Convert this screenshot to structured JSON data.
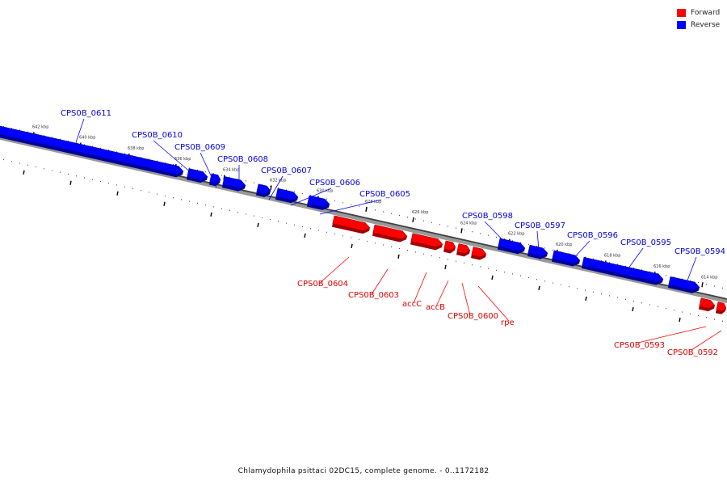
{
  "legend": {
    "forward_label": "Forward",
    "reverse_label": "Reverse",
    "forward_color": "#ff0000",
    "reverse_color": "#0000ff"
  },
  "caption": "Chlamydophila psittaci 02DC15, complete genome. - 0..1172182",
  "ruler": {
    "ticks": [
      {
        "kbp": 642,
        "label": "642 kbp"
      },
      {
        "kbp": 640,
        "label": "640 kbp"
      },
      {
        "kbp": 638,
        "label": "638 kbp"
      },
      {
        "kbp": 636,
        "label": "636 kbp"
      },
      {
        "kbp": 634,
        "label": "634 kbp"
      },
      {
        "kbp": 632,
        "label": "632 kbp"
      },
      {
        "kbp": 630,
        "label": "630 kbp"
      },
      {
        "kbp": 628,
        "label": "628 kbp"
      },
      {
        "kbp": 626,
        "label": "626 kbp"
      },
      {
        "kbp": 624,
        "label": "624 kbp"
      },
      {
        "kbp": 622,
        "label": "622 kbp"
      },
      {
        "kbp": 620,
        "label": "620 kbp"
      },
      {
        "kbp": 618,
        "label": "618 kbp"
      },
      {
        "kbp": 616,
        "label": "616 kbp"
      },
      {
        "kbp": 614,
        "label": "614 kbp"
      }
    ]
  },
  "genes": [
    {
      "name": "CPS0B_0611",
      "strand": "reverse"
    },
    {
      "name": "CPS0B_0610",
      "strand": "reverse"
    },
    {
      "name": "CPS0B_0609",
      "strand": "reverse"
    },
    {
      "name": "CPS0B_0608",
      "strand": "reverse"
    },
    {
      "name": "CPS0B_0607",
      "strand": "reverse"
    },
    {
      "name": "CPS0B_0606",
      "strand": "reverse"
    },
    {
      "name": "CPS0B_0605",
      "strand": "reverse"
    },
    {
      "name": "CPS0B_0598",
      "strand": "reverse"
    },
    {
      "name": "CPS0B_0597",
      "strand": "reverse"
    },
    {
      "name": "CPS0B_0596",
      "strand": "reverse"
    },
    {
      "name": "CPS0B_0595",
      "strand": "reverse"
    },
    {
      "name": "CPS0B_0594",
      "strand": "reverse"
    },
    {
      "name": "CPS0B_0604",
      "strand": "forward"
    },
    {
      "name": "CPS0B_0603",
      "strand": "forward"
    },
    {
      "name": "accC",
      "strand": "forward"
    },
    {
      "name": "accB",
      "strand": "forward"
    },
    {
      "name": "CPS0B_0600",
      "strand": "forward"
    },
    {
      "name": "rpe",
      "strand": "forward"
    },
    {
      "name": "CPS0B_0593",
      "strand": "forward"
    },
    {
      "name": "CPS0B_0592",
      "strand": "forward"
    }
  ]
}
